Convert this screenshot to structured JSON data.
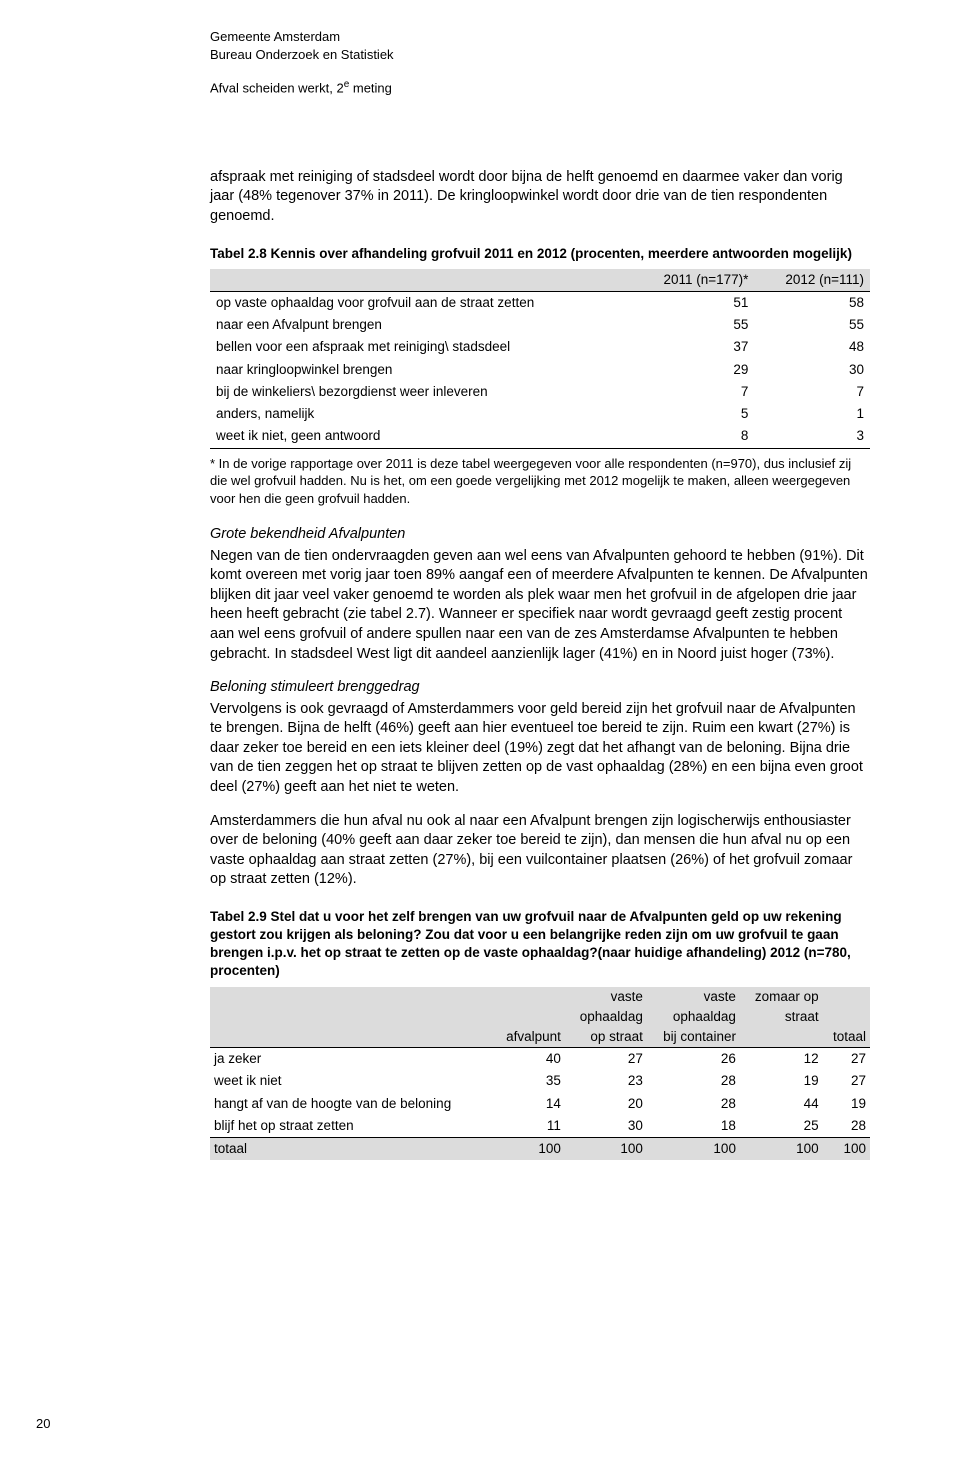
{
  "header": {
    "line1": "Gemeente Amsterdam",
    "line2": "Bureau Onderzoek en Statistiek",
    "line3_pre": "Afval scheiden werkt, 2",
    "line3_sup": "e",
    "line3_post": " meting"
  },
  "intro_para": "afspraak met reiniging of stadsdeel wordt door bijna de helft genoemd en daarmee vaker dan vorig jaar (48% tegenover 37% in 2011). De kringloopwinkel wordt door drie van de tien respondenten genoemd.",
  "table1": {
    "caption": "Tabel 2.8 Kennis over afhandeling grofvuil 2011 en 2012 (procenten, meerdere antwoorden mogelijk)",
    "col1": "2011 (n=177)*",
    "col2": "2012 (n=111)",
    "rows": [
      {
        "label": "op vaste ophaaldag voor grofvuil aan de straat zetten",
        "v1": "51",
        "v2": "58"
      },
      {
        "label": "naar een Afvalpunt brengen",
        "v1": "55",
        "v2": "55"
      },
      {
        "label": "bellen voor een afspraak met reiniging\\ stadsdeel",
        "v1": "37",
        "v2": "48"
      },
      {
        "label": "naar kringloopwinkel brengen",
        "v1": "29",
        "v2": "30"
      },
      {
        "label": "bij de winkeliers\\ bezorgdienst weer inleveren",
        "v1": "7",
        "v2": "7"
      },
      {
        "label": "anders, namelijk",
        "v1": "5",
        "v2": "1"
      },
      {
        "label": "weet ik niet, geen antwoord",
        "v1": "8",
        "v2": "3"
      }
    ],
    "footnote": "* In de vorige rapportage over 2011 is deze tabel weergegeven voor alle respondenten (n=970), dus inclusief zij die wel grofvuil hadden. Nu is het, om een goede vergelijking met 2012 mogelijk te maken, alleen weergegeven voor hen die geen grofvuil hadden."
  },
  "sec1": {
    "head": "Grote bekendheid Afvalpunten",
    "body": "Negen van de tien ondervraagden geven aan wel eens van Afvalpunten gehoord te hebben (91%). Dit komt overeen met vorig jaar toen 89% aangaf een of meerdere Afvalpunten te kennen. De Afvalpunten blijken dit jaar veel vaker genoemd te worden als plek waar men het grofvuil in de afgelopen drie jaar heen heeft gebracht (zie tabel 2.7). Wanneer er specifiek naar wordt gevraagd geeft zestig procent aan wel eens grofvuil of andere spullen naar een van de zes Amsterdamse Afvalpunten te hebben gebracht. In stadsdeel West ligt dit aandeel aanzienlijk lager (41%) en in Noord juist hoger (73%)."
  },
  "sec2": {
    "head": "Beloning stimuleert brenggedrag",
    "body1": "Vervolgens is ook gevraagd of Amsterdammers voor geld bereid zijn het grofvuil naar de Afvalpunten te brengen. Bijna de helft (46%) geeft aan hier eventueel toe bereid te zijn. Ruim een kwart (27%) is daar zeker toe bereid en een iets kleiner deel (19%) zegt dat het afhangt van de beloning. Bijna drie van de tien zeggen het op straat te blijven zetten op de vast ophaaldag (28%) en een bijna even groot deel (27%) geeft aan het niet te weten.",
    "body2": "Amsterdammers die hun afval nu ook al naar een Afvalpunt brengen zijn logischerwijs enthousiaster over de beloning (40% geeft aan daar zeker toe bereid te zijn), dan mensen die hun afval nu op een vaste ophaaldag aan straat zetten (27%), bij een vuilcontainer plaatsen (26%) of het grofvuil zomaar op straat zetten (12%)."
  },
  "table2": {
    "caption": "Tabel 2.9 Stel dat u voor het zelf brengen van uw grofvuil naar de Afvalpunten geld op uw rekening gestort zou krijgen als beloning? Zou dat voor u een belangrijke reden zijn om uw grofvuil te gaan brengen i.p.v. het op straat te zetten op de vaste ophaaldag?(naar huidige afhandeling) 2012 (n=780, procenten)",
    "cols": {
      "c1": "afvalpunt",
      "c2a": "vaste",
      "c2b": "ophaaldag",
      "c2c": "op straat",
      "c3a": "vaste",
      "c3b": "ophaaldag",
      "c3c": "bij container",
      "c4a": "zomaar op",
      "c4b": "straat",
      "c5": "totaal"
    },
    "rows": [
      {
        "label": "ja zeker",
        "v": [
          "40",
          "27",
          "26",
          "12",
          "27"
        ]
      },
      {
        "label": "weet ik niet",
        "v": [
          "35",
          "23",
          "28",
          "19",
          "27"
        ]
      },
      {
        "label": "hangt af van de hoogte van de beloning",
        "v": [
          "14",
          "20",
          "28",
          "44",
          "19"
        ]
      },
      {
        "label": "blijf het op straat zetten",
        "v": [
          "11",
          "30",
          "18",
          "25",
          "28"
        ]
      }
    ],
    "total": {
      "label": "totaal",
      "v": [
        "100",
        "100",
        "100",
        "100",
        "100"
      ]
    }
  },
  "pagenum": "20"
}
